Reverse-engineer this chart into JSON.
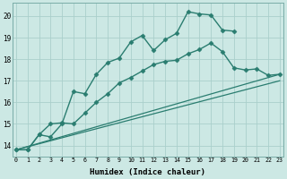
{
  "xlabel": "Humidex (Indice chaleur)",
  "ylabel": "",
  "bg_color": "#cce8e4",
  "line_color": "#2a7d70",
  "grid_color": "#aacfcb",
  "x_min": 0,
  "x_max": 23,
  "y_min": 13.5,
  "y_max": 20.6,
  "yticks": [
    14,
    15,
    16,
    17,
    18,
    19,
    20
  ],
  "xticks": [
    0,
    1,
    2,
    3,
    4,
    5,
    6,
    7,
    8,
    9,
    10,
    11,
    12,
    13,
    14,
    15,
    16,
    17,
    18,
    19,
    20,
    21,
    22,
    23
  ],
  "series": [
    {
      "x": [
        0,
        1,
        2,
        3,
        4,
        5,
        6,
        7,
        8,
        9,
        10,
        11,
        12,
        13,
        14,
        15,
        16,
        17,
        18,
        19
      ],
      "y": [
        13.8,
        13.8,
        14.5,
        14.4,
        15.0,
        16.5,
        16.4,
        17.3,
        17.85,
        18.05,
        18.8,
        19.1,
        18.4,
        18.9,
        19.2,
        20.2,
        20.1,
        20.05,
        19.35,
        19.3
      ],
      "marker": "D",
      "markersize": 2.5,
      "linewidth": 1.0,
      "has_marker": true
    },
    {
      "x": [
        0,
        1,
        2,
        3,
        4,
        5,
        6,
        7,
        8,
        9,
        10,
        11,
        12,
        13,
        14,
        15,
        16,
        17,
        18,
        19,
        20,
        21,
        22,
        23
      ],
      "y": [
        13.8,
        13.8,
        14.5,
        15.0,
        15.05,
        15.0,
        15.5,
        16.0,
        16.4,
        16.9,
        17.15,
        17.45,
        17.75,
        17.9,
        17.95,
        18.25,
        18.45,
        18.75,
        18.35,
        17.6,
        17.5,
        17.55,
        17.25,
        17.3
      ],
      "marker": "D",
      "markersize": 2.5,
      "linewidth": 1.0,
      "has_marker": true
    },
    {
      "x": [
        0,
        23
      ],
      "y": [
        13.8,
        17.3
      ],
      "marker": null,
      "markersize": 0,
      "linewidth": 0.9,
      "has_marker": false
    },
    {
      "x": [
        0,
        23
      ],
      "y": [
        13.8,
        17.0
      ],
      "marker": null,
      "markersize": 0,
      "linewidth": 0.9,
      "has_marker": false
    }
  ]
}
